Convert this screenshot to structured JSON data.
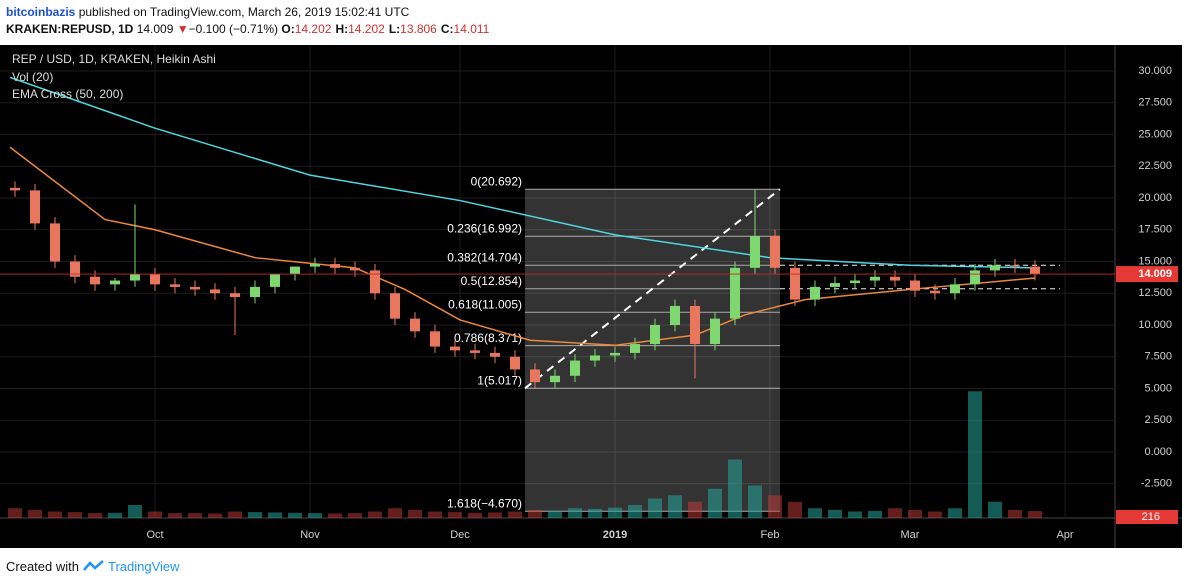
{
  "header": {
    "author": "bitcoinbazis",
    "published": "published on TradingView.com, March 26, 2019 15:02:41 UTC",
    "symbol": "KRAKEN:REPUSD, 1D",
    "price": "14.009",
    "arrow": "▼",
    "change": "−0.100 (−0.71%)",
    "ohlc": [
      {
        "label": "O:",
        "value": "14.202"
      },
      {
        "label": "H:",
        "value": "14.202"
      },
      {
        "label": "L:",
        "value": "13.806"
      },
      {
        "label": "C:",
        "value": "14.011"
      }
    ]
  },
  "footer": {
    "created": "Created with",
    "brand": "TradingView"
  },
  "chart_data": {
    "type": "candlestick",
    "title": "REP / USD, 1D, KRAKEN, Heikin Ashi",
    "indicators": [
      "Vol (20)",
      "EMA Cross (50, 200)"
    ],
    "x": [
      -28,
      -24,
      -20,
      -16,
      -12,
      -8,
      -4,
      0,
      4,
      8,
      12,
      16,
      20,
      24,
      28,
      32,
      36,
      40,
      44,
      48,
      52,
      56,
      60,
      64,
      68,
      72,
      76,
      80,
      84,
      88,
      92,
      96,
      100,
      104,
      108,
      112,
      116,
      120,
      124,
      128,
      132,
      136,
      140,
      144,
      148,
      152,
      156,
      160,
      164,
      168,
      172,
      176
    ],
    "open": [
      20.8,
      20.6,
      18.0,
      15.0,
      13.8,
      13.2,
      13.5,
      14.0,
      13.2,
      13.0,
      12.8,
      12.5,
      12.2,
      13.0,
      14.0,
      14.6,
      14.8,
      14.5,
      14.3,
      12.5,
      10.5,
      9.5,
      8.3,
      8.0,
      7.8,
      7.5,
      6.5,
      5.5,
      6.0,
      7.2,
      7.6,
      7.8,
      8.5,
      10.0,
      11.5,
      8.5,
      10.5,
      14.5,
      17.0,
      14.5,
      12.0,
      13.0,
      13.3,
      13.5,
      13.8,
      13.5,
      12.7,
      12.5,
      13.2,
      14.3,
      14.7,
      14.6
    ],
    "high": [
      21.3,
      21.1,
      18.5,
      15.5,
      14.3,
      13.7,
      19.5,
      14.5,
      13.7,
      13.5,
      13.3,
      13.0,
      13.5,
      14.0,
      14.6,
      15.3,
      15.3,
      15.0,
      14.8,
      13.0,
      11.0,
      10.0,
      8.8,
      8.5,
      8.3,
      8.0,
      7.0,
      6.5,
      7.7,
      8.1,
      8.3,
      9.0,
      10.5,
      12.0,
      12.0,
      11.0,
      15.0,
      20.7,
      17.5,
      15.0,
      13.5,
      13.8,
      14.0,
      14.3,
      14.3,
      14.0,
      13.2,
      13.7,
      14.8,
      15.2,
      15.2,
      15.1
    ],
    "low": [
      20.1,
      17.5,
      14.5,
      13.3,
      12.7,
      12.7,
      13.0,
      12.7,
      12.5,
      12.3,
      12.0,
      9.2,
      11.7,
      12.5,
      13.5,
      14.1,
      14.0,
      13.8,
      12.0,
      10.0,
      9.0,
      7.8,
      7.5,
      7.3,
      7.0,
      6.0,
      5.0,
      5.0,
      5.5,
      6.7,
      7.1,
      7.3,
      8.0,
      9.5,
      5.8,
      8.0,
      10.0,
      14.0,
      14.0,
      11.5,
      11.5,
      12.5,
      12.8,
      13.0,
      13.0,
      12.2,
      12.0,
      12.0,
      12.7,
      13.8,
      14.1,
      13.5
    ],
    "close": [
      20.6,
      18.0,
      15.0,
      13.8,
      13.2,
      13.5,
      14.0,
      13.2,
      13.0,
      12.8,
      12.5,
      12.2,
      13.0,
      14.0,
      14.6,
      14.8,
      14.5,
      14.3,
      12.5,
      10.5,
      9.5,
      8.3,
      8.0,
      7.8,
      7.5,
      6.5,
      5.5,
      6.0,
      7.2,
      7.6,
      7.8,
      8.5,
      10.0,
      11.5,
      8.5,
      10.5,
      14.5,
      17.0,
      14.5,
      12.0,
      13.0,
      13.3,
      13.5,
      13.8,
      13.5,
      12.7,
      12.5,
      13.2,
      14.3,
      14.7,
      14.6,
      14.0
    ],
    "volume": [
      300,
      250,
      200,
      180,
      150,
      160,
      400,
      200,
      150,
      150,
      140,
      200,
      180,
      170,
      160,
      150,
      140,
      150,
      200,
      300,
      250,
      200,
      180,
      160,
      170,
      200,
      250,
      220,
      300,
      280,
      320,
      400,
      600,
      700,
      500,
      900,
      1800,
      1000,
      700,
      500,
      300,
      250,
      200,
      220,
      300,
      250,
      200,
      300,
      3900,
      500,
      250,
      216
    ],
    "up_color": "#7ed86f",
    "down_color": "#e8775e",
    "ema": [
      {
        "color": "#4fd6e0",
        "x": [
          -29,
          0,
          31,
          61,
          92,
          123,
          151,
          176
        ],
        "values": [
          29.5,
          25.5,
          21.8,
          19.8,
          17.1,
          15.3,
          14.7,
          14.5
        ]
      },
      {
        "color": "#f0883a",
        "x": [
          -29,
          -10,
          0,
          20,
          40,
          50,
          61,
          75,
          92,
          108,
          118,
          130,
          151,
          176
        ],
        "values": [
          24.0,
          18.3,
          17.5,
          15.3,
          14.5,
          12.8,
          10.4,
          8.8,
          8.4,
          9.2,
          10.8,
          12.0,
          12.8,
          13.7
        ]
      }
    ],
    "fib": {
      "x_start": 74,
      "x_end": 125,
      "levels": [
        {
          "value": 20.692,
          "label": "0(20.692)"
        },
        {
          "value": 16.992,
          "label": "0.236(16.992)"
        },
        {
          "value": 14.704,
          "label": "0.382(14.704)"
        },
        {
          "value": 12.854,
          "label": "0.5(12.854)"
        },
        {
          "value": 11.005,
          "label": "0.618(11.005)"
        },
        {
          "value": 8.371,
          "label": "0.786(8.371)"
        },
        {
          "value": 5.017,
          "label": "1(5.017)"
        },
        {
          "value": -4.67,
          "label": "1.618(−4.670)"
        }
      ]
    },
    "last_price": {
      "value": 14.009,
      "label": "14.009"
    },
    "xlim": [
      -31,
      192
    ],
    "xticks": [
      {
        "value": 0,
        "label": "Oct"
      },
      {
        "value": 31,
        "label": "Nov"
      },
      {
        "value": 61,
        "label": "Dec"
      },
      {
        "value": 92,
        "label": "2019"
      },
      {
        "value": 123,
        "label": "Feb"
      },
      {
        "value": 151,
        "label": "Mar"
      },
      {
        "value": 182,
        "label": "Apr"
      }
    ],
    "ylim": [
      -5.2,
      32.05
    ],
    "yticks": [
      {
        "value": 30,
        "label": "30.000"
      },
      {
        "value": 27.5,
        "label": "27.500"
      },
      {
        "value": 25,
        "label": "25.000"
      },
      {
        "value": 22.5,
        "label": "22.500"
      },
      {
        "value": 20,
        "label": "20.000"
      },
      {
        "value": 17.5,
        "label": "17.500"
      },
      {
        "value": 15,
        "label": "15.000"
      },
      {
        "value": 12.5,
        "label": "12.500"
      },
      {
        "value": 10,
        "label": "10.000"
      },
      {
        "value": 7.5,
        "label": "7.500"
      },
      {
        "value": 5,
        "label": "5.000"
      },
      {
        "value": 2.5,
        "label": "2.500"
      },
      {
        "value": 0,
        "label": "0.000"
      },
      {
        "value": -2.5,
        "label": "-2.500"
      }
    ],
    "y2lim": [
      0,
      4000
    ],
    "grid": true
  }
}
